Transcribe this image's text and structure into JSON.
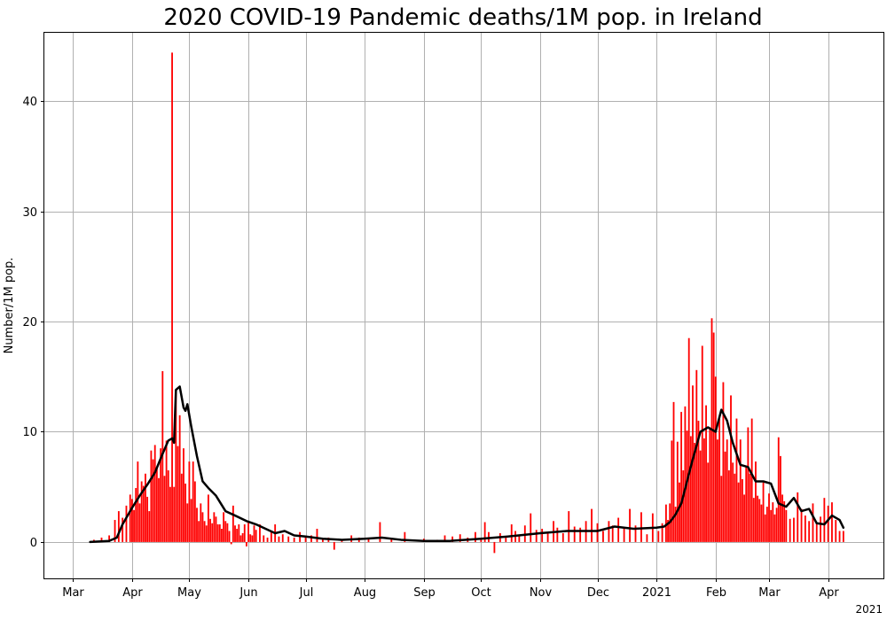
{
  "chart_data": {
    "type": "bar",
    "title": "2020 COVID-19 Pandemic deaths/1M pop. in Ireland",
    "xlabel": "",
    "ylabel": "Number/1M pop.",
    "x_offset_label": "2021",
    "xlim": [
      "2020-02-15",
      "2021-04-30"
    ],
    "ylim": [
      -3.3,
      46.2
    ],
    "y_ticks": [
      0,
      10,
      20,
      30,
      40
    ],
    "x_ticks": [
      {
        "date": "2020-03-01",
        "label": "Mar"
      },
      {
        "date": "2020-04-01",
        "label": "Apr"
      },
      {
        "date": "2020-05-01",
        "label": "May"
      },
      {
        "date": "2020-06-01",
        "label": "Jun"
      },
      {
        "date": "2020-07-01",
        "label": "Jul"
      },
      {
        "date": "2020-08-01",
        "label": "Aug"
      },
      {
        "date": "2020-09-01",
        "label": "Sep"
      },
      {
        "date": "2020-10-01",
        "label": "Oct"
      },
      {
        "date": "2020-11-01",
        "label": "Nov"
      },
      {
        "date": "2020-12-01",
        "label": "Dec"
      },
      {
        "date": "2021-01-01",
        "label": "2021"
      },
      {
        "date": "2021-02-01",
        "label": "Feb"
      },
      {
        "date": "2021-03-01",
        "label": "Mar"
      },
      {
        "date": "2021-04-01",
        "label": "Apr"
      }
    ],
    "grid": true,
    "bar_color": "#ff0000",
    "line_color": "#000000",
    "series": [
      {
        "type": "bar",
        "x": [
          "2020-03-12",
          "2020-03-16",
          "2020-03-20",
          "2020-03-23",
          "2020-03-25",
          "2020-03-27",
          "2020-03-29",
          "2020-03-31",
          "2020-04-01",
          "2020-04-02",
          "2020-04-03",
          "2020-04-04",
          "2020-04-05",
          "2020-04-06",
          "2020-04-07",
          "2020-04-08",
          "2020-04-09",
          "2020-04-10",
          "2020-04-11",
          "2020-04-12",
          "2020-04-13",
          "2020-04-14",
          "2020-04-15",
          "2020-04-16",
          "2020-04-17",
          "2020-04-18",
          "2020-04-19",
          "2020-04-20",
          "2020-04-21",
          "2020-04-22",
          "2020-04-23",
          "2020-04-24",
          "2020-04-25",
          "2020-04-26",
          "2020-04-27",
          "2020-04-28",
          "2020-04-29",
          "2020-04-30",
          "2020-05-01",
          "2020-05-02",
          "2020-05-03",
          "2020-05-04",
          "2020-05-05",
          "2020-05-06",
          "2020-05-07",
          "2020-05-08",
          "2020-05-09",
          "2020-05-10",
          "2020-05-11",
          "2020-05-12",
          "2020-05-13",
          "2020-05-14",
          "2020-05-15",
          "2020-05-16",
          "2020-05-17",
          "2020-05-18",
          "2020-05-19",
          "2020-05-20",
          "2020-05-21",
          "2020-05-22",
          "2020-05-23",
          "2020-05-24",
          "2020-05-25",
          "2020-05-26",
          "2020-05-27",
          "2020-05-28",
          "2020-05-29",
          "2020-05-30",
          "2020-05-31",
          "2020-06-01",
          "2020-06-02",
          "2020-06-03",
          "2020-06-04",
          "2020-06-05",
          "2020-06-07",
          "2020-06-09",
          "2020-06-11",
          "2020-06-13",
          "2020-06-15",
          "2020-06-17",
          "2020-06-19",
          "2020-06-22",
          "2020-06-25",
          "2020-06-28",
          "2020-07-01",
          "2020-07-04",
          "2020-07-07",
          "2020-07-10",
          "2020-07-13",
          "2020-07-16",
          "2020-07-20",
          "2020-07-25",
          "2020-07-29",
          "2020-08-03",
          "2020-08-09",
          "2020-08-15",
          "2020-08-22",
          "2020-09-01",
          "2020-09-08",
          "2020-09-12",
          "2020-09-16",
          "2020-09-20",
          "2020-09-24",
          "2020-09-28",
          "2020-10-01",
          "2020-10-03",
          "2020-10-05",
          "2020-10-08",
          "2020-10-11",
          "2020-10-14",
          "2020-10-17",
          "2020-10-19",
          "2020-10-21",
          "2020-10-24",
          "2020-10-27",
          "2020-10-30",
          "2020-11-02",
          "2020-11-05",
          "2020-11-08",
          "2020-11-10",
          "2020-11-13",
          "2020-11-16",
          "2020-11-19",
          "2020-11-22",
          "2020-11-25",
          "2020-11-28",
          "2020-12-01",
          "2020-12-04",
          "2020-12-07",
          "2020-12-09",
          "2020-12-12",
          "2020-12-15",
          "2020-12-18",
          "2020-12-21",
          "2020-12-24",
          "2020-12-27",
          "2020-12-30",
          "2021-01-02",
          "2021-01-04",
          "2021-01-06",
          "2021-01-07",
          "2021-01-08",
          "2021-01-09",
          "2021-01-10",
          "2021-01-11",
          "2021-01-12",
          "2021-01-13",
          "2021-01-14",
          "2021-01-15",
          "2021-01-16",
          "2021-01-17",
          "2021-01-18",
          "2021-01-19",
          "2021-01-20",
          "2021-01-21",
          "2021-01-22",
          "2021-01-23",
          "2021-01-24",
          "2021-01-25",
          "2021-01-26",
          "2021-01-27",
          "2021-01-28",
          "2021-01-29",
          "2021-01-30",
          "2021-01-31",
          "2021-02-01",
          "2021-02-02",
          "2021-02-03",
          "2021-02-04",
          "2021-02-05",
          "2021-02-06",
          "2021-02-07",
          "2021-02-08",
          "2021-02-09",
          "2021-02-10",
          "2021-02-11",
          "2021-02-12",
          "2021-02-13",
          "2021-02-14",
          "2021-02-15",
          "2021-02-16",
          "2021-02-17",
          "2021-02-18",
          "2021-02-19",
          "2021-02-20",
          "2021-02-21",
          "2021-02-22",
          "2021-02-23",
          "2021-02-24",
          "2021-02-25",
          "2021-02-26",
          "2021-02-27",
          "2021-02-28",
          "2021-03-01",
          "2021-03-02",
          "2021-03-03",
          "2021-03-04",
          "2021-03-05",
          "2021-03-06",
          "2021-03-07",
          "2021-03-08",
          "2021-03-09",
          "2021-03-10",
          "2021-03-12",
          "2021-03-14",
          "2021-03-16",
          "2021-03-18",
          "2021-03-20",
          "2021-03-22",
          "2021-03-24",
          "2021-03-26",
          "2021-03-28",
          "2021-03-30",
          "2021-04-01",
          "2021-04-03",
          "2021-04-05",
          "2021-04-07",
          "2021-04-09"
        ],
        "values": [
          0.2,
          0.4,
          0.6,
          2.0,
          2.8,
          2.2,
          3.3,
          4.3,
          3.9,
          2.9,
          4.9,
          7.3,
          3.5,
          5.5,
          5.1,
          6.2,
          4.1,
          2.8,
          8.3,
          7.5,
          8.8,
          6.8,
          5.8,
          8.5,
          15.5,
          6.0,
          9.2,
          6.5,
          5.0,
          44.4,
          5.0,
          13.7,
          8.7,
          11.5,
          6.2,
          8.5,
          5.3,
          3.5,
          7.3,
          3.9,
          7.3,
          5.5,
          3.1,
          1.9,
          3.5,
          2.7,
          1.9,
          1.5,
          4.3,
          2.1,
          1.7,
          2.7,
          2.3,
          1.6,
          1.6,
          1.2,
          2.7,
          1.9,
          1.7,
          1.0,
          -0.2,
          3.3,
          1.5,
          1.2,
          1.6,
          0.6,
          0.8,
          1.6,
          -0.4,
          1.8,
          0.7,
          0.6,
          1.5,
          1.1,
          1.6,
          0.6,
          0.4,
          0.9,
          1.6,
          0.5,
          0.7,
          0.5,
          0.4,
          0.9,
          0.5,
          0.6,
          1.2,
          0.3,
          0.4,
          -0.7,
          0.2,
          0.6,
          0.4,
          0.3,
          1.8,
          0.3,
          0.9,
          0.3,
          0.2,
          0.6,
          0.5,
          0.7,
          0.4,
          0.9,
          0.3,
          1.8,
          0.9,
          -1.0,
          0.8,
          0.4,
          1.6,
          1.0,
          0.6,
          1.5,
          2.6,
          1.1,
          1.2,
          0.9,
          1.9,
          1.3,
          0.8,
          2.8,
          1.4,
          1.3,
          1.9,
          3.0,
          1.7,
          1.0,
          1.9,
          1.5,
          2.2,
          1.3,
          3.0,
          1.5,
          2.7,
          0.7,
          2.6,
          1.0,
          1.7,
          3.4,
          2.0,
          3.5,
          9.2,
          12.7,
          3.2,
          9.1,
          5.4,
          11.8,
          6.5,
          12.3,
          10.1,
          18.5,
          9.6,
          14.2,
          9.0,
          15.6,
          11.0,
          8.3,
          17.8,
          9.4,
          12.4,
          7.2,
          10.3,
          20.3,
          19.0,
          15.0,
          9.3,
          11.4,
          6.0,
          14.5,
          8.2,
          9.3,
          6.5,
          13.3,
          7.2,
          6.2,
          11.2,
          5.4,
          9.3,
          5.7,
          4.3,
          6.8,
          10.4,
          6.2,
          11.2,
          4.0,
          7.3,
          4.2,
          3.9,
          3.4,
          5.4,
          2.5,
          3.2,
          4.4,
          2.9,
          3.6,
          2.5,
          3.1,
          9.5,
          7.8,
          4.3,
          3.7,
          2.9,
          2.1,
          2.2,
          4.5,
          3.0,
          2.4,
          1.9,
          3.5,
          1.7,
          2.3,
          4.0,
          3.3,
          3.6,
          2.0,
          1.0,
          1.0
        ]
      },
      {
        "type": "line",
        "x": [
          "2020-03-10",
          "2020-03-20",
          "2020-03-24",
          "2020-03-27",
          "2020-04-01",
          "2020-04-05",
          "2020-04-09",
          "2020-04-13",
          "2020-04-17",
          "2020-04-20",
          "2020-04-22",
          "2020-04-23",
          "2020-04-24",
          "2020-04-26",
          "2020-04-28",
          "2020-04-29",
          "2020-04-30",
          "2020-05-02",
          "2020-05-05",
          "2020-05-08",
          "2020-05-11",
          "2020-05-15",
          "2020-05-20",
          "2020-05-25",
          "2020-05-31",
          "2020-06-05",
          "2020-06-10",
          "2020-06-15",
          "2020-06-20",
          "2020-06-25",
          "2020-07-01",
          "2020-07-10",
          "2020-07-20",
          "2020-08-01",
          "2020-08-10",
          "2020-08-20",
          "2020-09-01",
          "2020-09-15",
          "2020-10-01",
          "2020-10-15",
          "2020-11-01",
          "2020-11-15",
          "2020-12-01",
          "2020-12-10",
          "2020-12-20",
          "2021-01-01",
          "2021-01-05",
          "2021-01-08",
          "2021-01-11",
          "2021-01-14",
          "2021-01-17",
          "2021-01-20",
          "2021-01-24",
          "2021-01-28",
          "2021-02-01",
          "2021-02-04",
          "2021-02-07",
          "2021-02-10",
          "2021-02-14",
          "2021-02-18",
          "2021-02-22",
          "2021-02-26",
          "2021-03-02",
          "2021-03-06",
          "2021-03-10",
          "2021-03-14",
          "2021-03-18",
          "2021-03-22",
          "2021-03-26",
          "2021-03-30",
          "2021-04-03",
          "2021-04-07",
          "2021-04-09"
        ],
        "values": [
          0.0,
          0.1,
          0.4,
          1.6,
          3.1,
          4.2,
          5.2,
          6.3,
          8.0,
          9.2,
          9.4,
          9.0,
          13.8,
          14.1,
          12.2,
          11.9,
          12.5,
          10.5,
          7.8,
          5.5,
          4.9,
          4.2,
          2.8,
          2.4,
          1.9,
          1.6,
          1.2,
          0.8,
          1.0,
          0.6,
          0.5,
          0.3,
          0.2,
          0.3,
          0.4,
          0.2,
          0.1,
          0.1,
          0.3,
          0.5,
          0.8,
          1.0,
          1.0,
          1.4,
          1.2,
          1.3,
          1.4,
          1.8,
          2.5,
          3.5,
          5.5,
          7.5,
          10.0,
          10.4,
          10.0,
          12.0,
          11.0,
          9.0,
          7.0,
          6.8,
          5.5,
          5.5,
          5.3,
          3.5,
          3.2,
          4.0,
          2.8,
          3.0,
          1.7,
          1.6,
          2.4,
          2.0,
          1.3
        ]
      }
    ]
  }
}
